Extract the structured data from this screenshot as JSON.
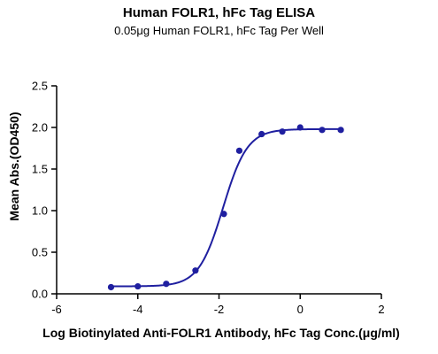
{
  "chart_data": {
    "type": "scatter",
    "title": "Human FOLR1, hFc Tag ELISA",
    "subtitle": "0.05μg Human FOLR1, hFc Tag Per Well",
    "xlabel": "Log Biotinylated Anti-FOLR1 Antibody, hFc Tag Conc.(μg/ml)",
    "ylabel": "Mean Abs.(OD450)",
    "xlim": [
      -6,
      2
    ],
    "ylim": [
      0,
      2.5
    ],
    "x_ticks": [
      "-6",
      "-4",
      "-2",
      "0",
      "2"
    ],
    "x_tick_values": [
      -6,
      -4,
      -2,
      0,
      2
    ],
    "y_ticks": [
      "0.0",
      "0.5",
      "1.0",
      "1.5",
      "2.0",
      "2.5"
    ],
    "y_tick_values": [
      0,
      0.5,
      1.0,
      1.5,
      2.0,
      2.5
    ],
    "grid": false,
    "legend": "none",
    "series": [
      {
        "color": "#1f1fa0",
        "points": [
          {
            "x": -4.66,
            "y": 0.08
          },
          {
            "x": -4.0,
            "y": 0.09
          },
          {
            "x": -3.3,
            "y": 0.12
          },
          {
            "x": -2.58,
            "y": 0.28
          },
          {
            "x": -1.88,
            "y": 0.96
          },
          {
            "x": -1.5,
            "y": 1.72
          },
          {
            "x": -0.95,
            "y": 1.92
          },
          {
            "x": -0.44,
            "y": 1.95
          },
          {
            "x": 0.0,
            "y": 2.0
          },
          {
            "x": 0.54,
            "y": 1.97
          },
          {
            "x": 1.0,
            "y": 1.97
          }
        ],
        "fit": {
          "model": "4PL",
          "bottom": 0.09,
          "top": 1.98,
          "log_ec50": -1.9,
          "hill": 1.45,
          "x_range": [
            -4.66,
            1.0
          ]
        }
      }
    ]
  }
}
